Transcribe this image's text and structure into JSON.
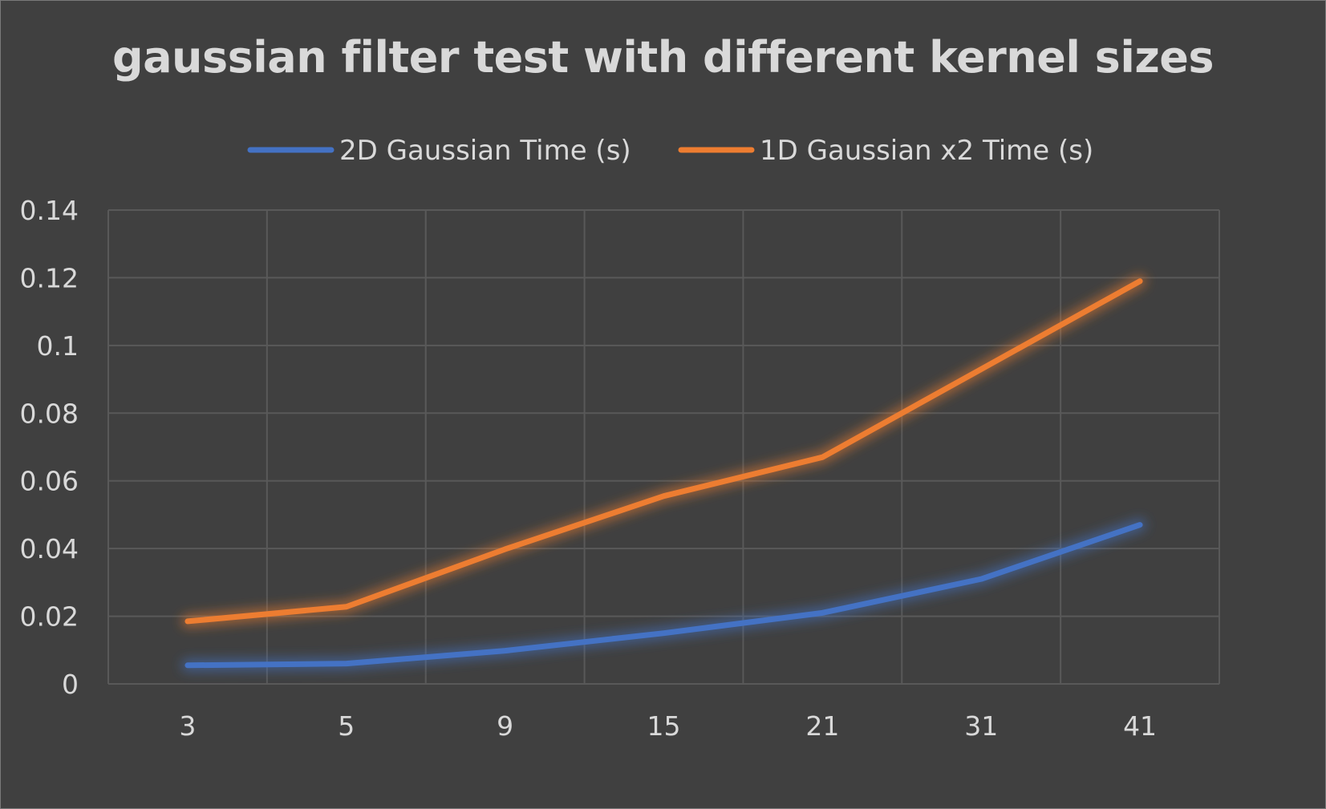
{
  "chart_data": {
    "type": "line",
    "title": "gaussian filter test with different kernel sizes",
    "xlabel": "",
    "ylabel": "",
    "categories": [
      "3",
      "5",
      "9",
      "15",
      "21",
      "31",
      "41"
    ],
    "series": [
      {
        "name": "2D Gaussian Time (s)",
        "color": "#4472c4",
        "values": [
          0.0055,
          0.006,
          0.0098,
          0.015,
          0.021,
          0.031,
          0.047
        ]
      },
      {
        "name": "1D Gaussian x2 Time (s)",
        "color": "#ed7d31",
        "values": [
          0.0185,
          0.0228,
          0.0398,
          0.0555,
          0.067,
          0.093,
          0.119
        ]
      }
    ],
    "ylim": [
      0,
      0.14
    ],
    "y_ticks": [
      "0",
      "0.02",
      "0.04",
      "0.06",
      "0.08",
      "0.1",
      "0.12",
      "0.14"
    ],
    "grid": true,
    "legend_position": "top"
  }
}
